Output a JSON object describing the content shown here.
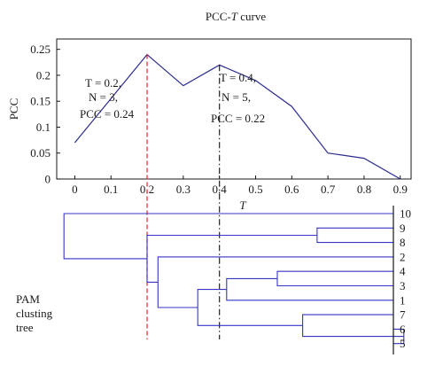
{
  "chart_data": [
    {
      "type": "line",
      "title": "PCC-T curve",
      "title_prefix": "PCC-",
      "title_italic": "T",
      "title_suffix": " curve",
      "xlabel": "T",
      "ylabel": "PCC",
      "xlim": [
        -0.05,
        0.93
      ],
      "ylim": [
        0,
        0.27
      ],
      "x_ticks": [
        "0",
        "0.1",
        "0.2",
        "0.3",
        "0.4",
        "0.5",
        "0.6",
        "0.7",
        "0.8",
        "0.9"
      ],
      "y_ticks": [
        "0",
        "0.05",
        "0.1",
        "0.15",
        "0.2",
        "0.25"
      ],
      "grid": false,
      "colors": {
        "line": "#2b2b8f",
        "marker_a": "#d62728",
        "marker_b": "#222222"
      },
      "series": [
        {
          "x": [
            0,
            0.2,
            0.3,
            0.4,
            0.5,
            0.6,
            0.7,
            0.8,
            0.9
          ],
          "y": [
            0.07,
            0.24,
            0.18,
            0.22,
            0.19,
            0.14,
            0.05,
            0.04,
            0
          ]
        }
      ],
      "markers": [
        {
          "x": 0.2,
          "style": "dashed",
          "label_t": "T = 0.2,",
          "label_n": "N = 3,",
          "label_pcc": "PCC = 0.24"
        },
        {
          "x": 0.4,
          "style": "dashdot",
          "label_t": "T = 0.4,",
          "label_n": "N = 5,",
          "label_pcc": "PCC = 0.22"
        }
      ]
    },
    {
      "type": "dendrogram",
      "label_lines": [
        "PAM",
        "clusting",
        "tree"
      ],
      "color": "#3535c8",
      "leaves": [
        "10",
        "9",
        "8",
        "2",
        "4",
        "3",
        "1",
        "7",
        "6",
        "5"
      ],
      "merges": [
        {
          "a": "6",
          "b": "5",
          "height": 0.91
        },
        {
          "a": "7",
          "b": "m0",
          "height": 0.63
        },
        {
          "a": "4",
          "b": "3",
          "height": 0.56
        },
        {
          "a": "m2",
          "b": "1",
          "height": 0.42
        },
        {
          "a": "m3",
          "b": "m1",
          "height": 0.34
        },
        {
          "a": "2",
          "b": "m4",
          "height": 0.23
        },
        {
          "a": "9",
          "b": "8",
          "height": 0.67
        },
        {
          "a": "m5",
          "b": "m6",
          "height": 0.2
        },
        {
          "a": "10",
          "b": "m7",
          "height": -0.03
        }
      ]
    }
  ]
}
